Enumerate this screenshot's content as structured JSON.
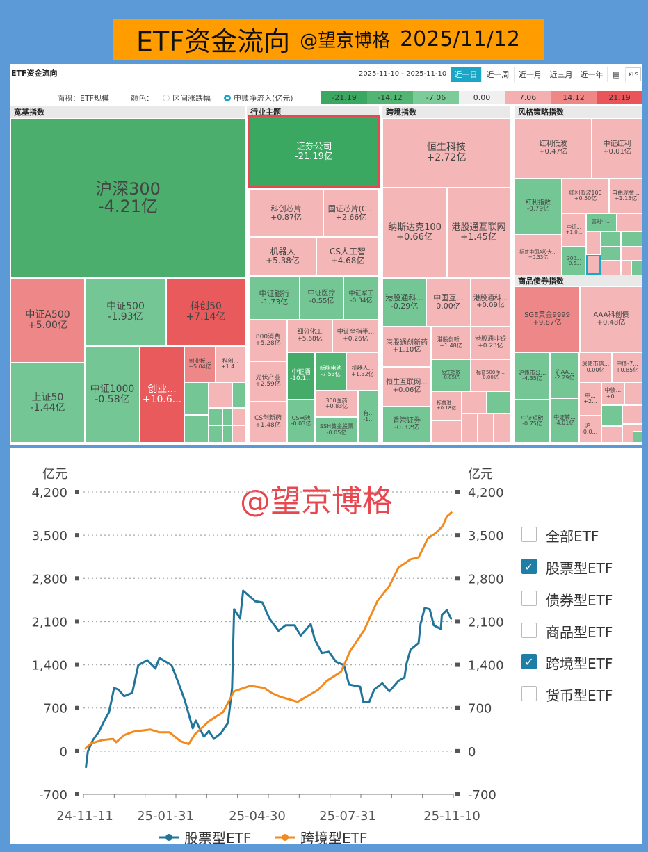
{
  "banner": {
    "title": "ETF资金流向",
    "author": "@望京博格",
    "date": "2025/11/12"
  },
  "panel": {
    "title": "ETF资金流向",
    "date_range": "2025-11-10 - 2025-11-10",
    "periods": [
      "近一日",
      "近一周",
      "近一月",
      "近三月",
      "近一年"
    ],
    "active_period": "近一日",
    "area_label": "面积：ETF规模",
    "color_label": "颜色：",
    "color_options": [
      "区间涨跌幅",
      "申赎净流入(亿元)"
    ],
    "selected_color_option": "申赎净流入(亿元)",
    "scale": [
      {
        "label": "-21.19",
        "color": "#3aa860"
      },
      {
        "label": "-14.12",
        "color": "#52b574"
      },
      {
        "label": "-7.06",
        "color": "#7ccb98"
      },
      {
        "label": "0.00",
        "color": "#f0f0f0"
      },
      {
        "label": "7.06",
        "color": "#f4b0b0"
      },
      {
        "label": "14.12",
        "color": "#ef8787"
      },
      {
        "label": "21.19",
        "color": "#e95558"
      }
    ]
  },
  "treemap": [
    {
      "title": "宽基指数",
      "tiles": [
        {
          "label": "沪深300",
          "value": "-4.21亿",
          "color": "#4cae6c"
        },
        {
          "label": "中证A500",
          "value": "+5.00亿",
          "color": "#ee8888"
        },
        {
          "label": "中证500",
          "value": "-1.93亿",
          "color": "#74c795"
        },
        {
          "label": "科创50",
          "value": "+7.14亿",
          "color": "#e95a5c"
        },
        {
          "label": "上证50",
          "value": "-1.44亿",
          "color": "#74c795"
        },
        {
          "label": "中证1000",
          "value": "-0.58亿",
          "color": "#74c795"
        },
        {
          "label": "创业...",
          "value": "+10.6...",
          "color": "#e95a5c"
        },
        {
          "label": "创业板...",
          "value": "+5.04亿",
          "color": "#ee8888"
        },
        {
          "label": "科创...",
          "value": "+1.4...",
          "color": "#f4b6b6"
        },
        {
          "label": "",
          "value": "",
          "color": "#74c795"
        },
        {
          "label": "",
          "value": "",
          "color": "#f4b6b6"
        },
        {
          "label": "",
          "value": "",
          "color": "#74c795"
        },
        {
          "label": "",
          "value": "",
          "color": "#74c795"
        },
        {
          "label": "",
          "value": "",
          "color": "#74c795"
        },
        {
          "label": "",
          "value": "",
          "color": "#74c795"
        },
        {
          "label": "",
          "value": "",
          "color": "#f4b6b6"
        },
        {
          "label": "",
          "value": "",
          "color": "#74c795"
        },
        {
          "label": "",
          "value": "",
          "color": "#74c795"
        },
        {
          "label": "",
          "value": "",
          "color": "#f4b6b6"
        }
      ]
    },
    {
      "title": "行业主题",
      "tiles": [
        {
          "label": "证券公司",
          "value": "-21.19亿",
          "color": "#3aa860"
        },
        {
          "label": "科创芯片",
          "value": "+0.87亿",
          "color": "#f4b6b6"
        },
        {
          "label": "国证芯片(C...",
          "value": "+2.66亿",
          "color": "#f4b6b6"
        },
        {
          "label": "机器人",
          "value": "+5.38亿",
          "color": "#f4b6b6"
        },
        {
          "label": "CS人工智",
          "value": "+4.68亿",
          "color": "#f4b6b6"
        },
        {
          "label": "中证银行",
          "value": "-1.73亿",
          "color": "#74c795"
        },
        {
          "label": "中证医疗",
          "value": "-0.55亿",
          "color": "#74c795"
        },
        {
          "label": "中证军工",
          "value": "-0.34亿",
          "color": "#74c795"
        },
        {
          "label": "800消费",
          "value": "+5.28亿",
          "color": "#f4b6b6"
        },
        {
          "label": "细分化工",
          "value": "+5.68亿",
          "color": "#f4b6b6"
        },
        {
          "label": "中证全指半...",
          "value": "+0.26亿",
          "color": "#f4b6b6"
        },
        {
          "label": "光伏产业",
          "value": "+2.59亿",
          "color": "#f4b6b6"
        },
        {
          "label": "CS创新药",
          "value": "+1.48亿",
          "color": "#f4b6b6"
        },
        {
          "label": "中证酒",
          "value": "-10.1...",
          "color": "#45ab68"
        },
        {
          "label": "新能电池",
          "value": "-7.53亿",
          "color": "#52b574"
        },
        {
          "label": "机器人...",
          "value": "+1.32亿",
          "color": "#f4b6b6"
        },
        {
          "label": "CS电池",
          "value": "-0.03亿",
          "color": "#74c795"
        },
        {
          "label": "300医药",
          "value": "+0.83亿",
          "color": "#f4b6b6"
        },
        {
          "label": "SSH黄金股票",
          "value": "-0.05亿",
          "color": "#74c795"
        },
        {
          "label": "有...",
          "value": "-1...",
          "color": "#74c795"
        }
      ]
    },
    {
      "title": "跨境指数",
      "tiles": [
        {
          "label": "恒生科技",
          "value": "+2.72亿",
          "color": "#f4b6b6"
        },
        {
          "label": "纳斯达克100",
          "value": "+0.66亿",
          "color": "#f4b6b6"
        },
        {
          "label": "港股通互联网",
          "value": "+1.45亿",
          "color": "#f4b6b6"
        },
        {
          "label": "港股通科...",
          "value": "-0.29亿",
          "color": "#74c795"
        },
        {
          "label": "中国互...",
          "value": "0.00亿",
          "color": "#f4b6b6"
        },
        {
          "label": "港股通科...",
          "value": "+0.09亿",
          "color": "#f4b6b6"
        },
        {
          "label": "港股通创新药",
          "value": "+1.10亿",
          "color": "#f4b6b6"
        },
        {
          "label": "港股创新...",
          "value": "+1.48亿",
          "color": "#f4b6b6"
        },
        {
          "label": "港股通非银",
          "value": "+0.23亿",
          "color": "#f4b6b6"
        },
        {
          "label": "恒生互联网...",
          "value": "+0.06亿",
          "color": "#f4b6b6"
        },
        {
          "label": "恒生指数",
          "value": "-0.05亿",
          "color": "#74c795"
        },
        {
          "label": "标普500净...",
          "value": "0.00亿",
          "color": "#f4b6b6"
        },
        {
          "label": "香港证券",
          "value": "-0.32亿",
          "color": "#74c795"
        },
        {
          "label": "标普港...",
          "value": "+0.18亿",
          "color": "#f4b6b6"
        },
        {
          "label": "",
          "value": "",
          "color": "#f4b6b6"
        },
        {
          "label": "",
          "value": "",
          "color": "#74c795"
        },
        {
          "label": "",
          "value": "",
          "color": "#f4b6b6"
        },
        {
          "label": "",
          "value": "",
          "color": "#f4b6b6"
        },
        {
          "label": "",
          "value": "",
          "color": "#f4b6b6"
        },
        {
          "label": "",
          "value": "",
          "color": "#f4b6b6"
        }
      ]
    },
    {
      "title": "风格策略指数",
      "tiles": [
        {
          "label": "红利低波",
          "value": "+0.47亿",
          "color": "#f4b6b6"
        },
        {
          "label": "中证红利",
          "value": "+0.01亿",
          "color": "#f4b6b6"
        },
        {
          "label": "红利指数",
          "value": "-0.79亿",
          "color": "#74c795"
        },
        {
          "label": "红利低波100",
          "value": "+0.50亿",
          "color": "#f4b6b6"
        },
        {
          "label": "自由现金...",
          "value": "+1.15亿",
          "color": "#f4b6b6"
        },
        {
          "label": "中证...",
          "value": "+1.0...",
          "color": "#f4b6b6"
        },
        {
          "label": "富时中...",
          "value": "",
          "color": "#74c795"
        },
        {
          "label": "",
          "value": "",
          "color": "#f4b6b6"
        },
        {
          "label": "标普中国A股大...",
          "value": "+0.33亿",
          "color": "#f4b6b6"
        },
        {
          "label": "300...",
          "value": "-0.6...",
          "color": "#74c795"
        },
        {
          "label": "",
          "value": "",
          "color": "#f4b6b6"
        },
        {
          "label": "",
          "value": "",
          "color": "#f4b6b6"
        },
        {
          "label": "",
          "value": "",
          "color": "#74c795"
        },
        {
          "label": "",
          "value": "",
          "color": "#74c795"
        },
        {
          "label": "",
          "value": "",
          "color": "#74c795"
        },
        {
          "label": "",
          "value": "",
          "color": "#f4b6b6"
        },
        {
          "label": "",
          "value": "",
          "color": "#f4b6b6"
        },
        {
          "label": "",
          "value": "",
          "color": "#f4b6b6"
        },
        {
          "label": "",
          "value": "",
          "color": "#74c795"
        }
      ]
    },
    {
      "title": "商品债券指数",
      "tiles": [
        {
          "label": "SGE黄金9999",
          "value": "+9.87亿",
          "color": "#ee8888"
        },
        {
          "label": "AAA科创债",
          "value": "+0.48亿",
          "color": "#f4b6b6"
        },
        {
          "label": "沪债市公...",
          "value": "-4.35亿",
          "color": "#74c795"
        },
        {
          "label": "沪AA...",
          "value": "-2.29亿",
          "color": "#74c795"
        },
        {
          "label": "中证短融",
          "value": "-0.75亿",
          "color": "#74c795"
        },
        {
          "label": "中证转...",
          "value": "-4.01亿",
          "color": "#74c795"
        },
        {
          "label": "深债市信...",
          "value": "0.00亿",
          "color": "#f4b6b6"
        },
        {
          "label": "中债-7...",
          "value": "+0.85亿",
          "color": "#f4b6b6"
        },
        {
          "label": "中...",
          "value": "+2...",
          "color": "#f4b6b6"
        },
        {
          "label": "中债...",
          "value": "+0...",
          "color": "#f4b6b6"
        },
        {
          "label": "",
          "value": "",
          "color": "#f4b6b6"
        },
        {
          "label": "沪...",
          "value": "0.0...",
          "color": "#f4b6b6"
        },
        {
          "label": "",
          "value": "",
          "color": "#74c795"
        },
        {
          "label": "",
          "value": "",
          "color": "#f4b6b6"
        },
        {
          "label": "",
          "value": "",
          "color": "#f4b6b6"
        },
        {
          "label": "",
          "value": "",
          "color": "#f4b6b6"
        },
        {
          "label": "",
          "value": "",
          "color": "#74c795"
        }
      ]
    }
  ],
  "watermark": "@望京博格",
  "legend_checkboxes": [
    {
      "label": "全部ETF",
      "checked": false
    },
    {
      "label": "股票型ETF",
      "checked": true
    },
    {
      "label": "债券型ETF",
      "checked": false
    },
    {
      "label": "商品型ETF",
      "checked": false
    },
    {
      "label": "跨境型ETF",
      "checked": true
    },
    {
      "label": "货币型ETF",
      "checked": false
    }
  ],
  "chart_data": {
    "type": "line",
    "ylabel_left": "亿元",
    "ylabel_right": "亿元",
    "ylim": [
      -700,
      4200
    ],
    "yticks": [
      -700,
      0,
      700,
      1400,
      2100,
      2800,
      3500,
      4200
    ],
    "ytick_labels": [
      "-700",
      "0",
      "700",
      "1,400",
      "2,100",
      "2,800",
      "3,500",
      "4,200"
    ],
    "xlim": [
      "2024-11-11",
      "2025-11-10"
    ],
    "xtick_labels": [
      "24-11-11",
      "25-01-31",
      "25-04-30",
      "25-07-31",
      "25-11-10"
    ],
    "grid": "horizontal dotted",
    "legend": "bottom",
    "series": [
      {
        "name": "股票型ETF",
        "color": "#21759b",
        "points": [
          [
            "2024-11-12",
            -270
          ],
          [
            "2024-11-14",
            0
          ],
          [
            "2024-11-19",
            180
          ],
          [
            "2024-11-25",
            315
          ],
          [
            "2024-11-30",
            485
          ],
          [
            "2024-12-05",
            630
          ],
          [
            "2024-12-10",
            1025
          ],
          [
            "2024-12-14",
            1000
          ],
          [
            "2024-12-20",
            890
          ],
          [
            "2024-12-28",
            945
          ],
          [
            "2025-01-03",
            1395
          ],
          [
            "2025-01-12",
            1475
          ],
          [
            "2025-01-20",
            1340
          ],
          [
            "2025-01-24",
            1510
          ],
          [
            "2025-02-05",
            1395
          ],
          [
            "2025-02-12",
            1100
          ],
          [
            "2025-02-18",
            830
          ],
          [
            "2025-02-26",
            370
          ],
          [
            "2025-03-01",
            495
          ],
          [
            "2025-03-09",
            235
          ],
          [
            "2025-03-14",
            325
          ],
          [
            "2025-03-19",
            200
          ],
          [
            "2025-03-26",
            290
          ],
          [
            "2025-04-02",
            460
          ],
          [
            "2025-04-06",
            1025
          ],
          [
            "2025-04-08",
            2300
          ],
          [
            "2025-04-14",
            2150
          ],
          [
            "2025-04-17",
            2600
          ],
          [
            "2025-04-29",
            2430
          ],
          [
            "2025-05-06",
            2410
          ],
          [
            "2025-05-13",
            2150
          ],
          [
            "2025-05-22",
            1950
          ],
          [
            "2025-05-29",
            2040
          ],
          [
            "2025-06-07",
            2040
          ],
          [
            "2025-06-13",
            1870
          ],
          [
            "2025-06-23",
            2060
          ],
          [
            "2025-06-27",
            1810
          ],
          [
            "2025-07-04",
            1590
          ],
          [
            "2025-07-11",
            1610
          ],
          [
            "2025-07-18",
            1450
          ],
          [
            "2025-07-26",
            1395
          ],
          [
            "2025-07-31",
            1080
          ],
          [
            "2025-08-11",
            1045
          ],
          [
            "2025-08-14",
            800
          ],
          [
            "2025-08-20",
            800
          ],
          [
            "2025-08-25",
            1000
          ],
          [
            "2025-09-02",
            1100
          ],
          [
            "2025-09-09",
            970
          ],
          [
            "2025-09-18",
            1140
          ],
          [
            "2025-09-24",
            1195
          ],
          [
            "2025-09-26",
            1420
          ],
          [
            "2025-09-30",
            1645
          ],
          [
            "2025-10-08",
            1755
          ],
          [
            "2025-10-10",
            2070
          ],
          [
            "2025-10-14",
            2320
          ],
          [
            "2025-10-19",
            2300
          ],
          [
            "2025-10-23",
            2040
          ],
          [
            "2025-10-30",
            1980
          ],
          [
            "2025-10-31",
            2205
          ],
          [
            "2025-11-05",
            2285
          ],
          [
            "2025-11-09",
            2150
          ],
          [
            "2025-11-10",
            2150
          ]
        ]
      },
      {
        "name": "跨境型ETF",
        "color": "#f28a1e",
        "points": [
          [
            "2024-11-11",
            35
          ],
          [
            "2024-11-17",
            125
          ],
          [
            "2024-11-28",
            180
          ],
          [
            "2024-12-09",
            200
          ],
          [
            "2024-12-12",
            145
          ],
          [
            "2024-12-20",
            260
          ],
          [
            "2024-12-29",
            315
          ],
          [
            "2025-01-15",
            350
          ],
          [
            "2025-01-24",
            305
          ],
          [
            "2025-02-03",
            305
          ],
          [
            "2025-02-14",
            160
          ],
          [
            "2025-02-22",
            115
          ],
          [
            "2025-02-28",
            270
          ],
          [
            "2025-03-14",
            485
          ],
          [
            "2025-03-28",
            630
          ],
          [
            "2025-04-08",
            970
          ],
          [
            "2025-04-24",
            1060
          ],
          [
            "2025-05-08",
            1025
          ],
          [
            "2025-05-15",
            945
          ],
          [
            "2025-05-24",
            880
          ],
          [
            "2025-06-10",
            800
          ],
          [
            "2025-06-30",
            990
          ],
          [
            "2025-07-09",
            1140
          ],
          [
            "2025-07-23",
            1285
          ],
          [
            "2025-08-01",
            1620
          ],
          [
            "2025-08-15",
            1960
          ],
          [
            "2025-08-28",
            2430
          ],
          [
            "2025-09-09",
            2680
          ],
          [
            "2025-09-18",
            2975
          ],
          [
            "2025-09-30",
            3110
          ],
          [
            "2025-10-08",
            3140
          ],
          [
            "2025-10-17",
            3445
          ],
          [
            "2025-10-25",
            3535
          ],
          [
            "2025-11-01",
            3650
          ],
          [
            "2025-11-05",
            3805
          ],
          [
            "2025-11-09",
            3860
          ],
          [
            "2025-11-10",
            3880
          ]
        ]
      }
    ]
  }
}
